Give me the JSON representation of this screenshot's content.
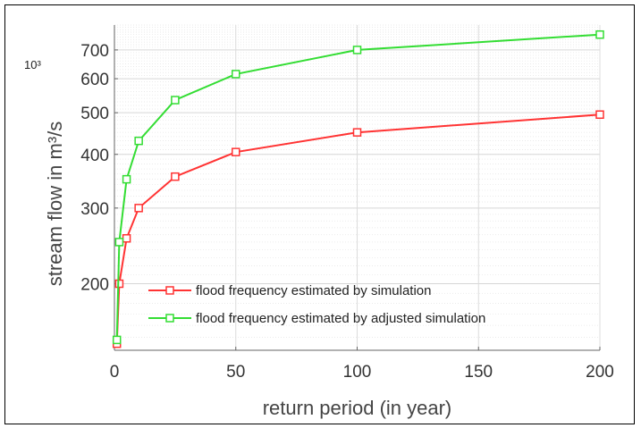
{
  "chart_data": {
    "type": "line",
    "title": "",
    "xlabel": "return period (in year)",
    "ylabel": "stream flow in m³/s",
    "y_exponent_label": "10³",
    "y_scale": "log",
    "xlim": [
      0,
      200
    ],
    "ylim": [
      140,
      800
    ],
    "x_ticks": [
      0,
      50,
      100,
      150,
      200
    ],
    "y_ticks": [
      200,
      300,
      400,
      500,
      600,
      700
    ],
    "grid": true,
    "legend_position": "bottom-right",
    "series": [
      {
        "name": "flood frequency estimated by simulation",
        "color": "#ff3333",
        "x": [
          1,
          2,
          5,
          10,
          25,
          50,
          100,
          200
        ],
        "y": [
          145,
          200,
          255,
          300,
          355,
          405,
          450,
          495
        ]
      },
      {
        "name": "flood frequency estimated by adjusted simulation",
        "color": "#33dd33",
        "x": [
          1,
          2,
          5,
          10,
          25,
          50,
          100,
          200
        ],
        "y": [
          148,
          250,
          350,
          430,
          535,
          615,
          700,
          760
        ]
      }
    ]
  }
}
